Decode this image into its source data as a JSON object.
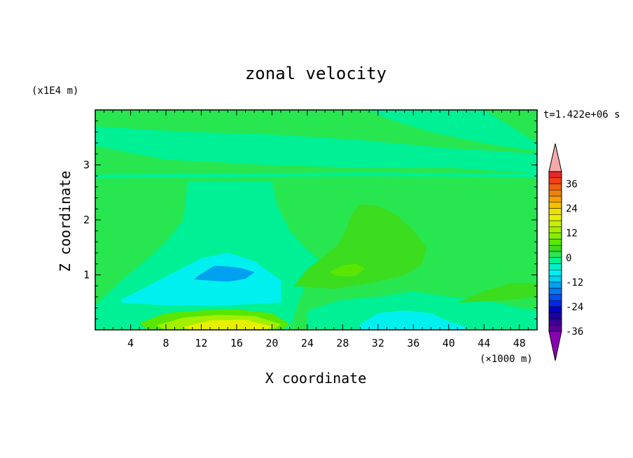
{
  "chart_data": {
    "type": "heatmap",
    "title": "zonal velocity",
    "xlabel": "X coordinate",
    "ylabel": "Z coordinate",
    "x_unit": "(×1000 m)",
    "y_unit": "(x1E4 m)",
    "time_label": "t=1.422e+06 s",
    "xlim": [
      0,
      50
    ],
    "ylim": [
      0,
      4
    ],
    "x_ticks": [
      4,
      8,
      12,
      16,
      20,
      24,
      28,
      32,
      36,
      40,
      44,
      48
    ],
    "y_ticks": [
      1,
      2,
      3
    ],
    "x_tick_labels": [
      "4",
      "8",
      "12",
      "16",
      "20",
      "24",
      "28",
      "32",
      "36",
      "40",
      "44",
      "48"
    ],
    "y_tick_labels": [
      "1",
      "2",
      "3"
    ],
    "colorbar": {
      "levels": [
        {
          "value": 42,
          "color": "#f5aaaa"
        },
        {
          "value": 39,
          "color": "#e62828"
        },
        {
          "value": 36,
          "color": "#f04018"
        },
        {
          "value": 33,
          "color": "#f06010"
        },
        {
          "value": 30,
          "color": "#f08010"
        },
        {
          "value": 27,
          "color": "#f5a000"
        },
        {
          "value": 24,
          "color": "#f5c000"
        },
        {
          "value": 21,
          "color": "#f0e000"
        },
        {
          "value": 18,
          "color": "#e6f000"
        },
        {
          "value": 15,
          "color": "#c8f000"
        },
        {
          "value": 12,
          "color": "#a0f000"
        },
        {
          "value": 9,
          "color": "#82f000"
        },
        {
          "value": 6,
          "color": "#5ae600"
        },
        {
          "value": 3,
          "color": "#3cdc1e"
        },
        {
          "value": 0,
          "color": "#28e650"
        },
        {
          "value": -3,
          "color": "#00f096"
        },
        {
          "value": -6,
          "color": "#00f0c8"
        },
        {
          "value": -9,
          "color": "#00f0f0"
        },
        {
          "value": -12,
          "color": "#00d2f0"
        },
        {
          "value": -15,
          "color": "#00a0f0"
        },
        {
          "value": -18,
          "color": "#0078f0"
        },
        {
          "value": -21,
          "color": "#0050f0"
        },
        {
          "value": -24,
          "color": "#0028e6"
        },
        {
          "value": -27,
          "color": "#0000c8"
        },
        {
          "value": -30,
          "color": "#1e00a0"
        },
        {
          "value": -33,
          "color": "#3c0096"
        },
        {
          "value": -36,
          "color": "#5a0096"
        },
        {
          "value": -39,
          "color": "#8c00b4"
        }
      ],
      "tick_labels": [
        "36",
        "24",
        "12",
        "0",
        "-12",
        "-24",
        "-36"
      ],
      "tick_values": [
        36,
        24,
        12,
        0,
        -12,
        -24,
        -36
      ]
    },
    "regions": [
      {
        "name": "upper-teal-band",
        "level": -3,
        "points": [
          [
            0,
            3.35
          ],
          [
            8,
            3.1
          ],
          [
            20,
            3.0
          ],
          [
            30,
            2.95
          ],
          [
            40,
            2.95
          ],
          [
            50,
            2.85
          ],
          [
            50,
            3.2
          ],
          [
            40,
            3.3
          ],
          [
            30,
            3.45
          ],
          [
            20,
            3.55
          ],
          [
            10,
            3.6
          ],
          [
            0,
            3.7
          ]
        ]
      },
      {
        "name": "upper-right-teal-wedge",
        "level": -3,
        "points": [
          [
            31,
            4
          ],
          [
            44,
            4
          ],
          [
            50,
            3.4
          ],
          [
            50,
            3.25
          ],
          [
            44,
            3.4
          ],
          [
            38,
            3.6
          ],
          [
            33,
            3.85
          ]
        ]
      },
      {
        "name": "thin-teal-stripe",
        "level": -3,
        "points": [
          [
            0,
            2.82
          ],
          [
            30,
            2.86
          ],
          [
            50,
            2.84
          ],
          [
            50,
            2.78
          ],
          [
            30,
            2.8
          ],
          [
            0,
            2.76
          ]
        ]
      },
      {
        "name": "teal-plume",
        "level": -3,
        "points": [
          [
            0,
            0.45
          ],
          [
            3,
            0.9
          ],
          [
            6,
            1.3
          ],
          [
            8,
            1.6
          ],
          [
            10,
            2.0
          ],
          [
            10.5,
            2.7
          ],
          [
            20,
            2.7
          ],
          [
            20.5,
            2.3
          ],
          [
            22,
            1.8
          ],
          [
            24,
            1.45
          ],
          [
            26,
            1.2
          ],
          [
            24,
            0.9
          ],
          [
            23,
            0.5
          ],
          [
            22,
            0
          ],
          [
            0,
            0
          ]
        ]
      },
      {
        "name": "cyan-core",
        "level": -9,
        "points": [
          [
            3,
            0.55
          ],
          [
            6,
            0.8
          ],
          [
            9,
            1.05
          ],
          [
            12,
            1.3
          ],
          [
            15,
            1.4
          ],
          [
            18,
            1.25
          ],
          [
            21,
            0.9
          ],
          [
            21,
            0.5
          ],
          [
            15,
            0.45
          ],
          [
            8,
            0.45
          ],
          [
            3,
            0.5
          ]
        ]
      },
      {
        "name": "blue-core",
        "level": -15,
        "points": [
          [
            11.2,
            0.92
          ],
          [
            12,
            1.02
          ],
          [
            13.5,
            1.16
          ],
          [
            15,
            1.15
          ],
          [
            16.5,
            1.12
          ],
          [
            18,
            1.05
          ],
          [
            17,
            0.93
          ],
          [
            15,
            0.88
          ],
          [
            13,
            0.9
          ]
        ]
      },
      {
        "name": "bottom-warm-1",
        "level": 6,
        "points": [
          [
            5,
            0.12
          ],
          [
            8,
            0.3
          ],
          [
            12,
            0.35
          ],
          [
            16,
            0.37
          ],
          [
            20,
            0.3
          ],
          [
            22,
            0.1
          ],
          [
            21,
            0
          ],
          [
            6,
            0
          ]
        ]
      },
      {
        "name": "bottom-warm-2",
        "level": 12,
        "points": [
          [
            7,
            0.08
          ],
          [
            10,
            0.22
          ],
          [
            14,
            0.27
          ],
          [
            18,
            0.25
          ],
          [
            21,
            0.1
          ],
          [
            20,
            0
          ],
          [
            8,
            0
          ]
        ]
      },
      {
        "name": "bottom-warm-3",
        "level": 18,
        "points": [
          [
            10,
            0.05
          ],
          [
            13,
            0.17
          ],
          [
            17,
            0.18
          ],
          [
            20,
            0.06
          ],
          [
            19,
            0
          ],
          [
            11,
            0
          ]
        ]
      },
      {
        "name": "right-lower-teal",
        "level": -3,
        "points": [
          [
            24,
            0
          ],
          [
            24,
            0.35
          ],
          [
            28,
            0.55
          ],
          [
            32,
            0.6
          ],
          [
            36,
            0.7
          ],
          [
            40,
            0.6
          ],
          [
            44,
            0.55
          ],
          [
            48,
            0.4
          ],
          [
            50,
            0.35
          ],
          [
            50,
            0
          ]
        ]
      },
      {
        "name": "right-lower-cyan",
        "level": -9,
        "points": [
          [
            30,
            0.1
          ],
          [
            32,
            0.3
          ],
          [
            35,
            0.35
          ],
          [
            38,
            0.3
          ],
          [
            40,
            0.15
          ],
          [
            42,
            0.05
          ],
          [
            42,
            0
          ],
          [
            30,
            0
          ]
        ]
      },
      {
        "name": "lime-bulge",
        "level": 3,
        "points": [
          [
            22.5,
            0.8
          ],
          [
            24,
            1.1
          ],
          [
            26,
            1.35
          ],
          [
            27.5,
            1.55
          ],
          [
            28.5,
            1.85
          ],
          [
            29,
            2.1
          ],
          [
            30,
            2.28
          ],
          [
            32,
            2.25
          ],
          [
            34,
            2.1
          ],
          [
            36,
            1.8
          ],
          [
            37.5,
            1.5
          ],
          [
            37,
            1.2
          ],
          [
            35,
            1.0
          ],
          [
            31,
            0.85
          ],
          [
            27,
            0.75
          ]
        ]
      },
      {
        "name": "lime-core",
        "level": 6,
        "points": [
          [
            26.5,
            1.05
          ],
          [
            28,
            1.17
          ],
          [
            29.5,
            1.2
          ],
          [
            30.5,
            1.12
          ],
          [
            29.5,
            0.98
          ],
          [
            27.5,
            0.98
          ]
        ]
      },
      {
        "name": "lime-right-tongue",
        "level": 3,
        "points": [
          [
            41,
            0.5
          ],
          [
            44,
            0.7
          ],
          [
            47,
            0.85
          ],
          [
            50,
            0.85
          ],
          [
            50,
            0.6
          ],
          [
            47,
            0.55
          ],
          [
            44,
            0.52
          ]
        ]
      }
    ]
  }
}
